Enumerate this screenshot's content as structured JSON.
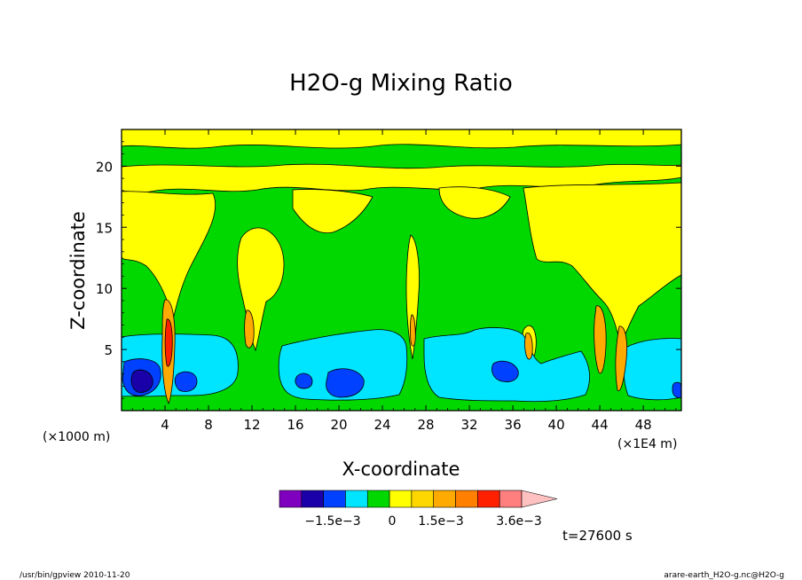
{
  "chart_data": {
    "type": "heatmap",
    "title": "H2O-g Mixing Ratio",
    "xlabel": "X-coordinate",
    "ylabel": "Z-coordinate",
    "x_unit": "(×1E4 m)",
    "y_unit": "(×1000 m)",
    "xlim": [
      0,
      51.5
    ],
    "ylim": [
      0,
      23
    ],
    "x_ticks": [
      4,
      8,
      12,
      16,
      20,
      24,
      28,
      32,
      36,
      40,
      44,
      48
    ],
    "y_ticks": [
      5,
      10,
      15,
      20
    ],
    "x_tick_labels": [
      "4",
      "8",
      "12",
      "16",
      "20",
      "24",
      "28",
      "32",
      "36",
      "40",
      "44",
      "48"
    ],
    "y_tick_labels": [
      "5",
      "10",
      "15",
      "20"
    ],
    "colorbar": {
      "colors": [
        "#8000c0",
        "#1a00a8",
        "#0040ff",
        "#00e5ff",
        "#00d800",
        "#ffff00",
        "#ffd700",
        "#ffaa00",
        "#ff7f00",
        "#ff2000",
        "#ff7f7f",
        "#ffc0c0"
      ],
      "labels": [
        "−1.5e−3",
        "0",
        "1.5e−3",
        "3.6e−3"
      ],
      "extend": "max"
    },
    "level_colors": {
      "deep_negative": "#1a00a8",
      "negative": "#0040ff",
      "slightly_negative": "#00e5ff",
      "near_zero": "#00d800",
      "positive": "#ffff00",
      "higher_positive": "#ffaa00",
      "max": "#ff2000"
    },
    "grid": false
  },
  "annotations": {
    "time": "t=27600 s",
    "footer_left": "/usr/bin/gpview   2010-11-20",
    "footer_right": "arare-earth_H2O-g.nc@H2O-g"
  }
}
